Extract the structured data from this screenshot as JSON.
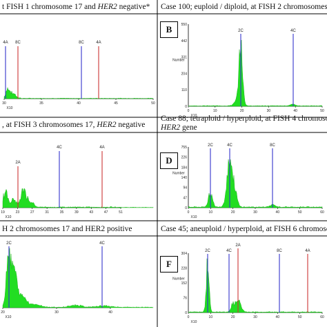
{
  "headers": {
    "r1_left": [
      "t FISH 1 chromosome 17 and ",
      "HER2",
      " negative*"
    ],
    "r1_right": "Case 100; euploid / diploid, at FISH 2 chromosomes 17 a",
    "r2_left": [
      ", at FISH 3 chromosomes 17, ",
      "HER2",
      " negative"
    ],
    "r2_right_1": "Case 88;  tetraploid / hyperploid, at FISH 4 chromosome",
    "r2_right_2": [
      "HER2",
      " gene"
    ],
    "r3_left": "H 2 chromosomes 17 and HER2 positive",
    "r3_right": "Case 45; aneuploid / hyperploid, at FISH 6 chromosome"
  },
  "panels": {
    "A": {
      "peak_labels": [
        "4A",
        "8C",
        "8C",
        "4A"
      ],
      "x_ticks": [
        "30",
        "35",
        "40",
        "45",
        "50"
      ],
      "xlabel": "X10"
    },
    "B": {
      "letter": "B",
      "ylabel": "Number",
      "y_ticks": [
        "550",
        "442",
        "331",
        "204",
        "110",
        "0"
      ],
      "x_ticks": [
        "0",
        "10",
        "20",
        "30",
        "40",
        "50"
      ],
      "xlabel": "X10",
      "peak_labels": [
        "2C",
        "4C"
      ]
    },
    "C": {
      "peak_labels": [
        "2A",
        "4C",
        "4A"
      ],
      "x_ticks": [
        "19",
        "23",
        "27",
        "31",
        "35",
        "39",
        "43",
        "47",
        "51"
      ],
      "xlabel": "X10"
    },
    "D": {
      "letter": "D",
      "ylabel": "Number",
      "y_ticks": [
        "755",
        "226",
        "184",
        "140",
        "94",
        "47",
        "0"
      ],
      "x_ticks": [
        "0",
        "10",
        "20",
        "30",
        "40",
        "50",
        "60"
      ],
      "xlabel": "X10",
      "peak_labels": [
        "2C",
        "4C",
        "8C"
      ]
    },
    "E": {
      "peak_labels": [
        "2C",
        "4C"
      ],
      "x_ticks": [
        "20",
        "30",
        "40"
      ],
      "xlabel": "X10"
    },
    "F": {
      "letter": "F",
      "ylabel": "Number",
      "y_ticks": [
        "304",
        "228",
        "152",
        "76",
        "0"
      ],
      "x_ticks": [
        "0",
        "10",
        "20",
        "30",
        "40",
        "50",
        "60"
      ],
      "xlabel": "X10",
      "peak_labels": [
        "2C",
        "4C",
        "2A",
        "8C",
        "4A"
      ]
    }
  },
  "colors": {
    "bars": "#22dd22",
    "blue_line": "#3333cc",
    "red_line": "#cc3333",
    "grid": "#000000"
  }
}
